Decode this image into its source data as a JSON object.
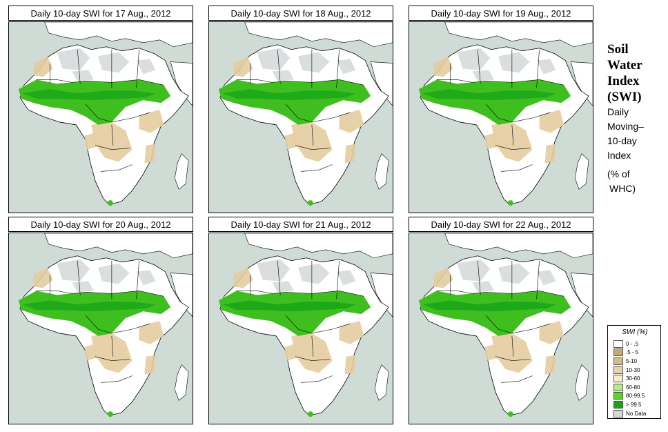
{
  "panels": [
    {
      "title": "Daily 10-day SWI for 17 Aug., 2012"
    },
    {
      "title": "Daily 10-day SWI for 18 Aug., 2012"
    },
    {
      "title": "Daily 10-day SWI for 19 Aug., 2012"
    },
    {
      "title": "Daily 10-day SWI for 20 Aug., 2012"
    },
    {
      "title": "Daily 10-day SWI for 21 Aug., 2012"
    },
    {
      "title": "Daily 10-day SWI for 22 Aug., 2012"
    }
  ],
  "side": {
    "title_lines": [
      "Soil",
      "Water",
      "Index",
      "(SWI)"
    ],
    "desc_lines": [
      "Daily",
      "Moving–",
      "10-day",
      "Index"
    ],
    "unit_lines": [
      "(% of",
      "WHC)"
    ]
  },
  "legend": {
    "title": "SWI (%)",
    "items": [
      {
        "label": "0 - .5",
        "color": "#ffffff"
      },
      {
        "label": ".5 - 5",
        "color": "#c9a870"
      },
      {
        "label": "5-10",
        "color": "#d6b98a"
      },
      {
        "label": "10-30",
        "color": "#e8d3ad"
      },
      {
        "label": "30-60",
        "color": "#f5ecc8"
      },
      {
        "label": "60-80",
        "color": "#b6e88a"
      },
      {
        "label": "80-99.5",
        "color": "#5fd22a"
      },
      {
        "label": "> 99.5",
        "color": "#18a618"
      },
      {
        "label": "No Data",
        "color": "#d3d8d8"
      }
    ]
  },
  "colors": {
    "ocean": "#cfdcd6",
    "land_nodata": "#d3d8d8",
    "dry_tan": "#e3cc9f",
    "wet_green": "#3fbf1f",
    "very_wet": "#18a618"
  }
}
